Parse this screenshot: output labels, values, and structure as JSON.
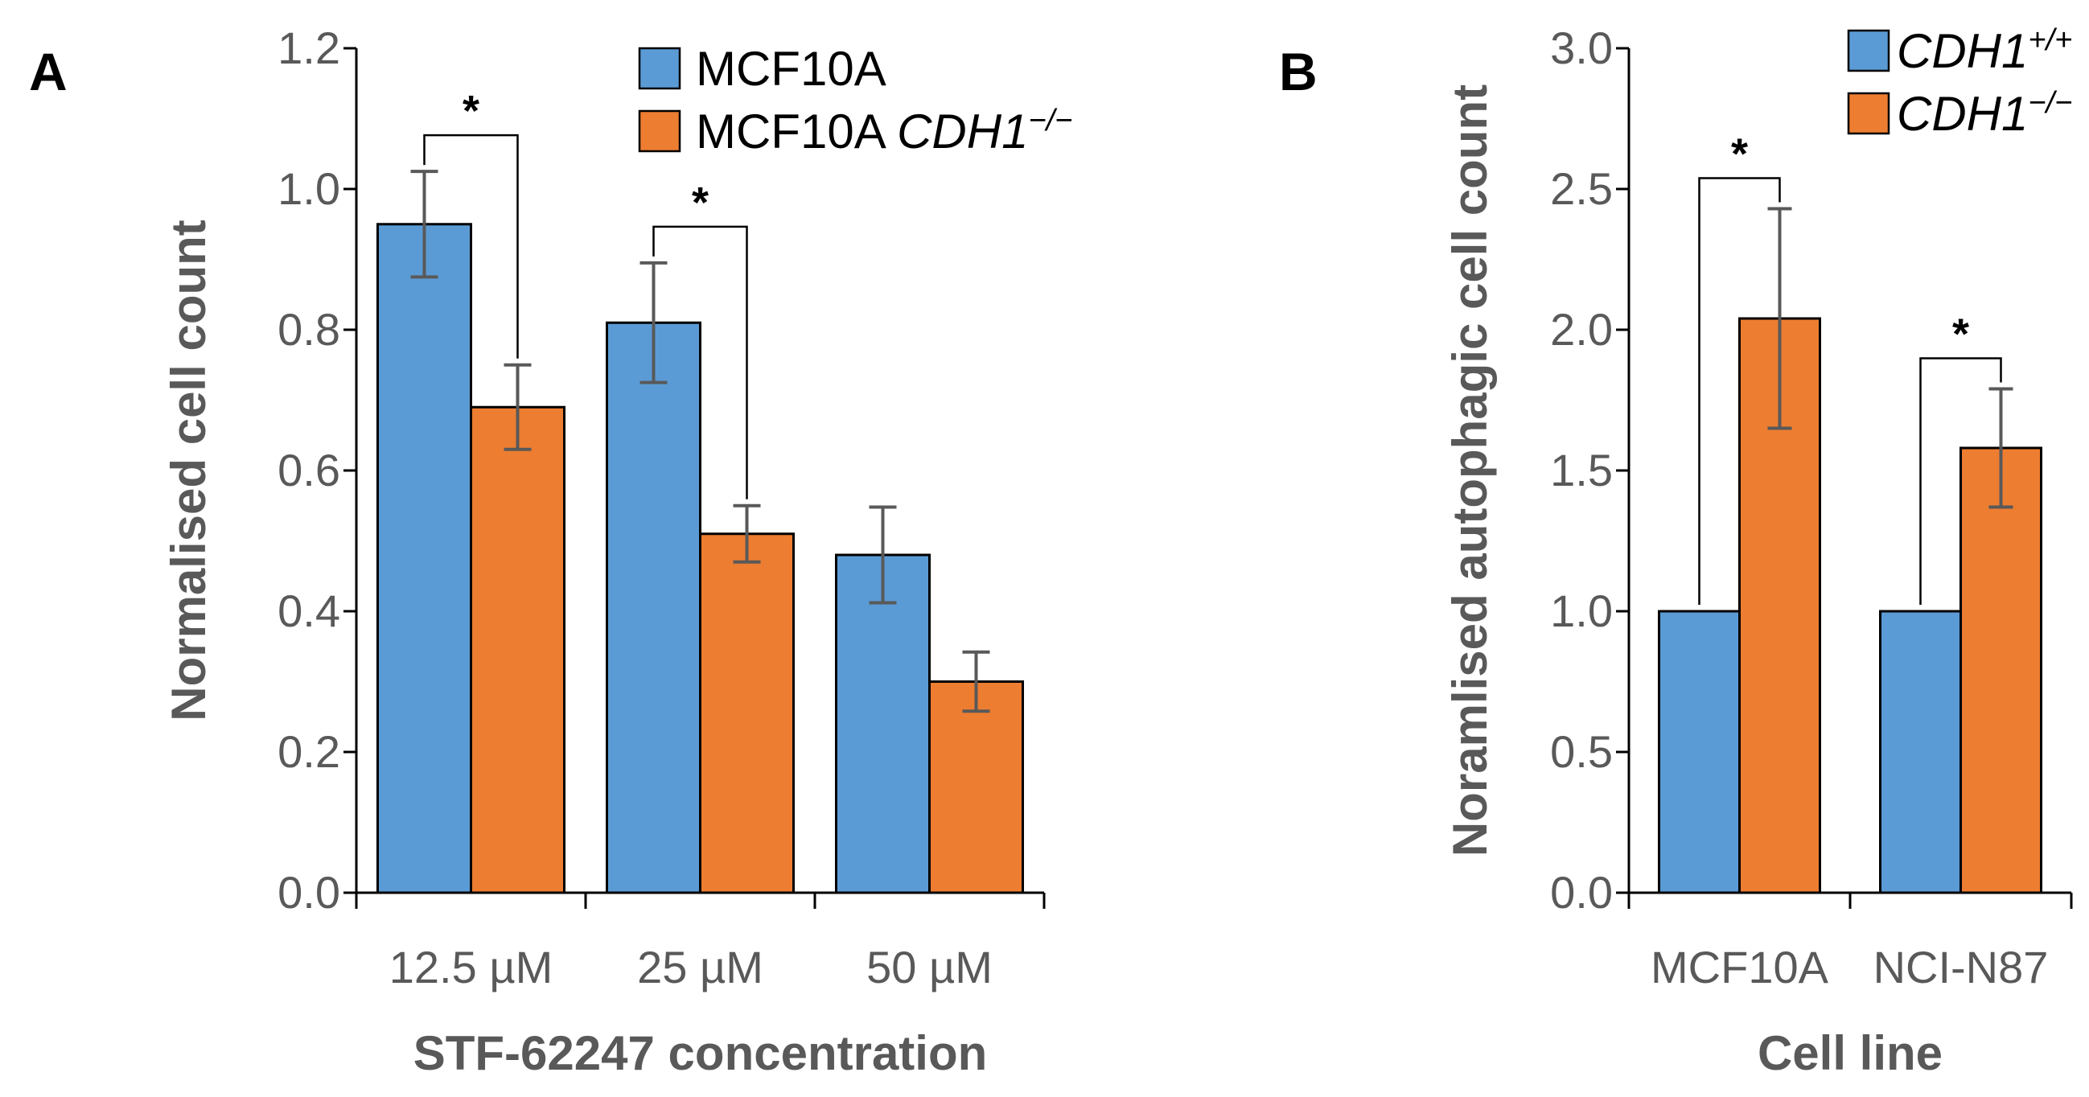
{
  "chart_data": [
    {
      "panel": "A",
      "type": "bar",
      "title": "",
      "xlabel": "STF-62247 concentration",
      "ylabel": "Normalised cell count",
      "categories": [
        "12.5 µM",
        "25 µM",
        "50 µM"
      ],
      "ylim": [
        0,
        1.2
      ],
      "yticks": [
        "0.0",
        "0.2",
        "0.4",
        "0.6",
        "0.8",
        "1.0",
        "1.2"
      ],
      "series": [
        {
          "name": "MCF10A",
          "legend_label": "MCF10A",
          "legend_italic": "",
          "legend_sup": "",
          "color": "#5B9BD5",
          "values": [
            0.95,
            0.81,
            0.48
          ],
          "errors": [
            0.075,
            0.085,
            0.068
          ]
        },
        {
          "name": "MCF10A CDH1−/−",
          "legend_label": "MCF10A ",
          "legend_italic": "CDH1",
          "legend_sup": "−/−",
          "color": "#ED7D31",
          "values": [
            0.69,
            0.51,
            0.3
          ],
          "errors": [
            0.06,
            0.04,
            0.042
          ]
        }
      ],
      "significance": [
        {
          "category": "12.5 µM",
          "label": "*"
        },
        {
          "category": "25 µM",
          "label": "*"
        }
      ],
      "legend_position": "top-right",
      "grid": false
    },
    {
      "panel": "B",
      "type": "bar",
      "title": "",
      "xlabel": "Cell line",
      "ylabel": "Noramlised autophagic cell count",
      "categories": [
        "MCF10A",
        "NCI-N87"
      ],
      "ylim": [
        0,
        3.0
      ],
      "yticks": [
        "0.0",
        "0.5",
        "1.0",
        "1.5",
        "2.0",
        "2.5",
        "3.0"
      ],
      "series": [
        {
          "name": "CDH1+/+",
          "legend_label": "",
          "legend_italic": "CDH1",
          "legend_sup": "+/+",
          "color": "#5B9BD5",
          "values": [
            1.0,
            1.0
          ],
          "errors": [
            0,
            0
          ]
        },
        {
          "name": "CDH1−/−",
          "legend_label": "",
          "legend_italic": "CDH1",
          "legend_sup": "−/−",
          "color": "#ED7D31",
          "values": [
            2.04,
            1.58
          ],
          "errors": [
            0.39,
            0.21
          ]
        }
      ],
      "significance": [
        {
          "category": "MCF10A",
          "label": "*"
        },
        {
          "category": "NCI-N87",
          "label": "*"
        }
      ],
      "legend_position": "top-right",
      "grid": false
    }
  ]
}
